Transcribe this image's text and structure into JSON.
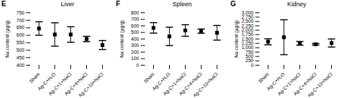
{
  "chart_data": [
    {
      "type": "scatter",
      "panel_label": "E",
      "title": "Liver",
      "y_label": "Na content (µg/g)",
      "categories": [
        "Sham",
        "Ag-C+H₂O",
        "Ag-C+1+NaCl",
        "Ag-C+4+NaCl",
        "Ag-C+10+NaCl"
      ],
      "values": [
        645,
        605,
        605,
        575,
        535
      ],
      "errors": [
        45,
        78,
        52,
        18,
        30
      ],
      "color": "#000000",
      "marker": "square",
      "ylim": [
        400,
        750
      ],
      "yticks": [
        400,
        450,
        500,
        550,
        600,
        650,
        700,
        750
      ]
    },
    {
      "type": "scatter",
      "panel_label": "F",
      "title": "Spleen",
      "y_label": "Na content (µg/g)",
      "categories": [
        "Sham",
        "Ag-C+H₂O",
        "Ag-C+1+NaCl",
        "Ag-C+4+NaCl",
        "Ag-C+10+NaCl"
      ],
      "values": [
        570,
        440,
        530,
        520,
        495
      ],
      "errors": [
        80,
        140,
        88,
        32,
        112
      ],
      "color": "#000000",
      "marker": "square",
      "ylim": [
        0,
        800
      ],
      "yticks": [
        0,
        100,
        200,
        300,
        400,
        500,
        600,
        700,
        800
      ]
    },
    {
      "type": "scatter",
      "panel_label": "G",
      "title": "Kidney",
      "y_label": "Na content (µg/g)",
      "categories": [
        "Sham",
        "Ag-C+H₂O",
        "Ag-C+1+NaCl",
        "Ag-C+4+NaCl",
        "Ag-C+10+NaCl"
      ],
      "values": [
        1340,
        1600,
        1250,
        1200,
        1270
      ],
      "errors": [
        170,
        1000,
        105,
        50,
        230
      ],
      "color": "#000000",
      "marker": "square",
      "ylim": [
        0,
        3000
      ],
      "yticks": [
        0,
        250,
        500,
        750,
        {
          "value": 1000,
          "label": "1,000"
        },
        {
          "value": 1250,
          "label": "1,250"
        },
        {
          "value": 1500,
          "label": "1,500"
        },
        {
          "value": 1750,
          "label": "1,750"
        },
        {
          "value": 2000,
          "label": "2,000"
        },
        {
          "value": 2250,
          "label": "2,250"
        },
        {
          "value": 2500,
          "label": "2,500"
        },
        {
          "value": 2750,
          "label": "2,750"
        },
        {
          "value": 3000,
          "label": "3,000"
        }
      ]
    }
  ]
}
